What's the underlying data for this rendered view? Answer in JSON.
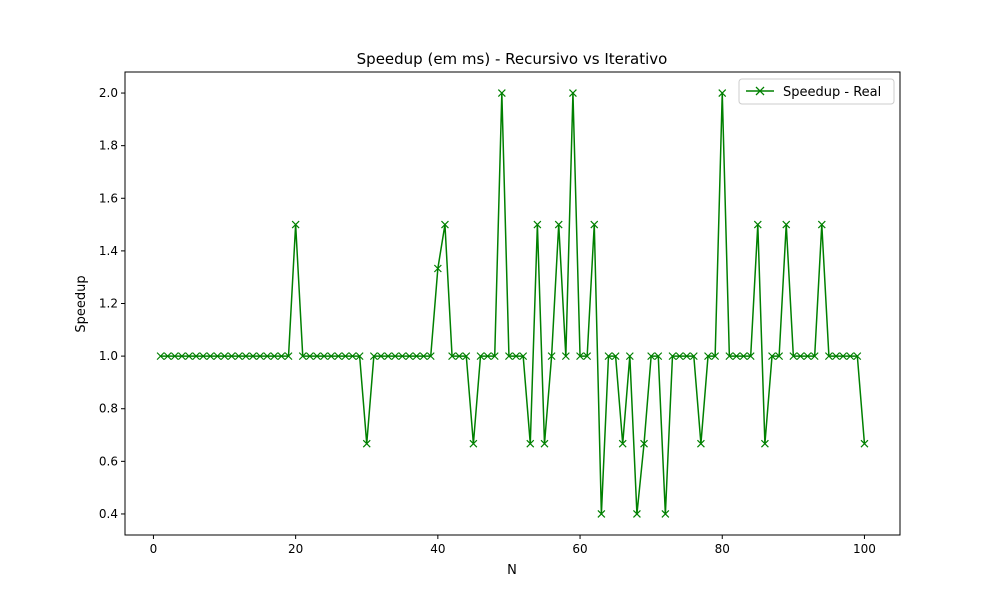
{
  "chart_data": {
    "type": "line",
    "title": "Speedup (em ms) - Recursivo vs Iterativo",
    "xlabel": "N",
    "ylabel": "Speedup",
    "xlim": [
      -4,
      105
    ],
    "ylim": [
      0.32,
      2.08
    ],
    "xticks": [
      0,
      20,
      40,
      60,
      80,
      100
    ],
    "xtick_labels": [
      "0",
      "20",
      "40",
      "60",
      "80",
      "100"
    ],
    "yticks": [
      0.4,
      0.6,
      0.8,
      1.0,
      1.2,
      1.4,
      1.6,
      1.8,
      2.0
    ],
    "ytick_labels": [
      "0.4",
      "0.6",
      "0.8",
      "1.0",
      "1.2",
      "1.4",
      "1.6",
      "1.8",
      "2.0"
    ],
    "grid": false,
    "legend_position": "top-right",
    "series": [
      {
        "name": "Speedup - Real",
        "color": "#008000",
        "marker": "x",
        "x": [
          1,
          2,
          3,
          4,
          5,
          6,
          7,
          8,
          9,
          10,
          11,
          12,
          13,
          14,
          15,
          16,
          17,
          18,
          19,
          20,
          21,
          22,
          23,
          24,
          25,
          26,
          27,
          28,
          29,
          30,
          31,
          32,
          33,
          34,
          35,
          36,
          37,
          38,
          39,
          40,
          41,
          42,
          43,
          44,
          45,
          46,
          47,
          48,
          49,
          50,
          51,
          52,
          53,
          54,
          55,
          56,
          57,
          58,
          59,
          60,
          61,
          62,
          63,
          64,
          65,
          66,
          67,
          68,
          69,
          70,
          71,
          72,
          73,
          74,
          75,
          76,
          77,
          78,
          79,
          80,
          81,
          82,
          83,
          84,
          85,
          86,
          87,
          88,
          89,
          90,
          91,
          92,
          93,
          94,
          95,
          96,
          97,
          98,
          99,
          100
        ],
        "values": [
          1,
          1,
          1,
          1,
          1,
          1,
          1,
          1,
          1,
          1,
          1,
          1,
          1,
          1,
          1,
          1,
          1,
          1,
          1,
          1.5,
          1,
          1,
          1,
          1,
          1,
          1,
          1,
          1,
          1,
          0.667,
          1,
          1,
          1,
          1,
          1,
          1,
          1,
          1,
          1,
          1.333,
          1.5,
          1,
          1,
          1,
          0.667,
          1,
          1,
          1,
          2,
          1,
          1,
          1,
          0.667,
          1.5,
          0.667,
          1,
          1.5,
          1,
          2,
          1,
          1,
          1.5,
          0.4,
          1,
          1,
          0.667,
          1,
          0.4,
          0.667,
          1,
          1,
          0.4,
          1,
          1,
          1,
          1,
          0.667,
          1,
          1,
          2,
          1,
          1,
          1,
          1,
          1.5,
          0.667,
          1,
          1,
          1.5,
          1,
          1,
          1,
          1,
          1.5,
          1,
          1,
          1,
          1,
          1,
          0.667
        ]
      }
    ]
  }
}
